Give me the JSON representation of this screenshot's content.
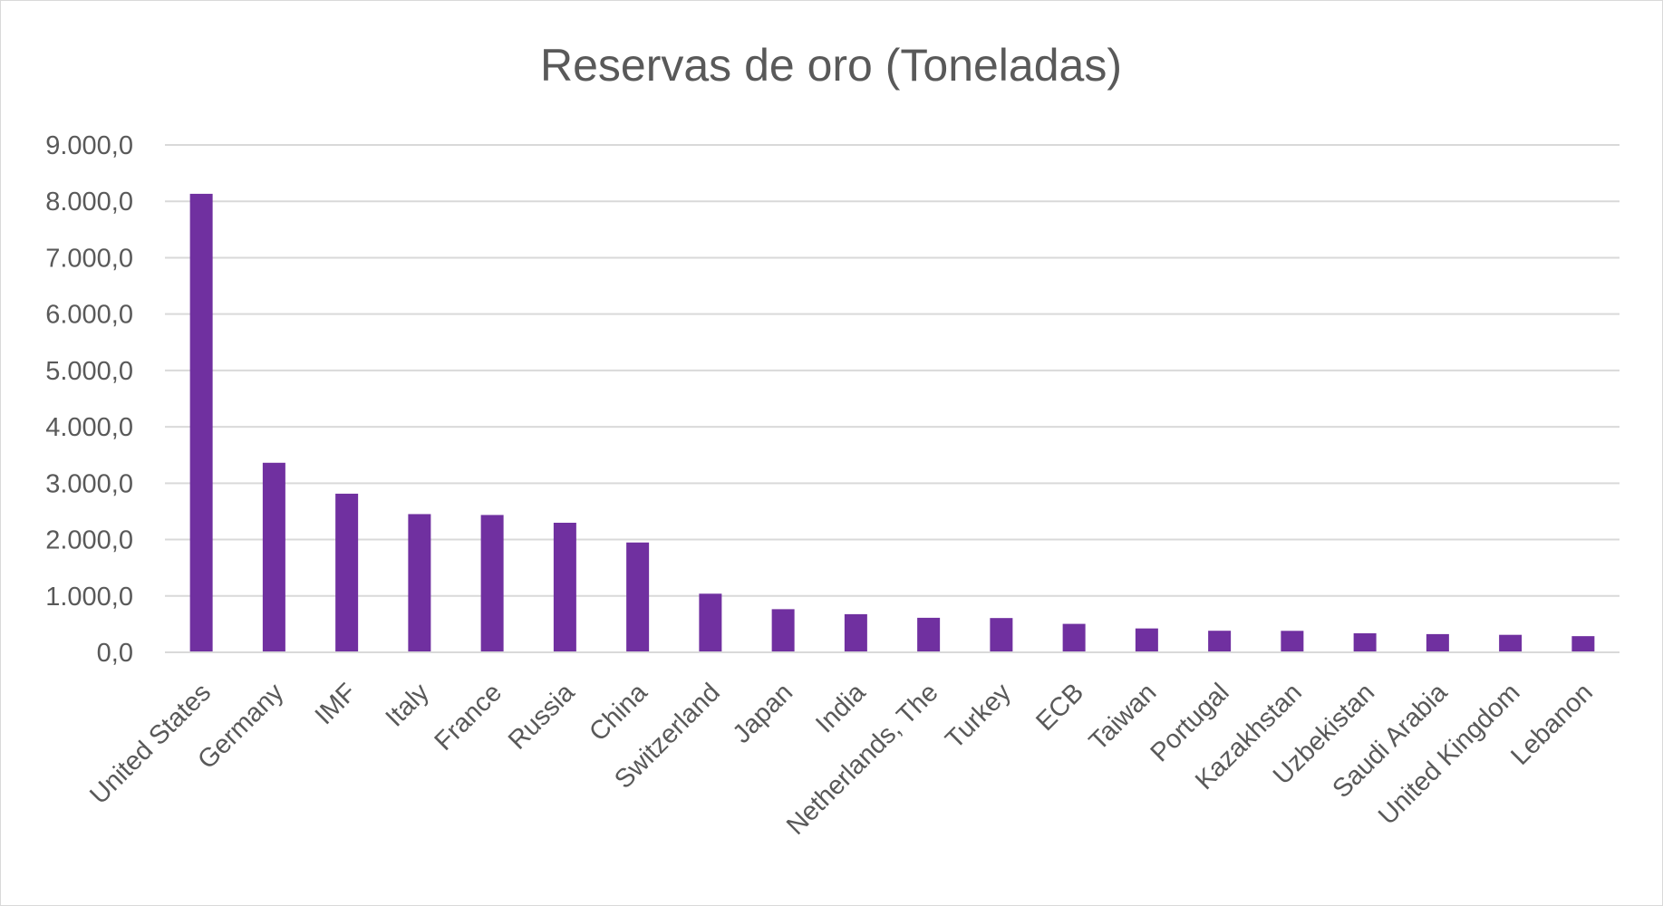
{
  "chart_data": {
    "type": "bar",
    "title": "Reservas de oro (Toneladas)",
    "xlabel": "",
    "ylabel": "",
    "ylim": [
      0,
      9000
    ],
    "y_ticks": [
      0,
      1000,
      2000,
      3000,
      4000,
      5000,
      6000,
      7000,
      8000,
      9000
    ],
    "y_tick_labels": [
      "0,0",
      "1.000,0",
      "2.000,0",
      "3.000,0",
      "4.000,0",
      "5.000,0",
      "6.000,0",
      "7.000,0",
      "8.000,0",
      "9.000,0"
    ],
    "grid": true,
    "legend": "none",
    "bar_color": "#7030a0",
    "categories": [
      "United States",
      "Germany",
      "IMF",
      "Italy",
      "France",
      "Russia",
      "China",
      "Switzerland",
      "Japan",
      "India",
      "Netherlands, The",
      "Turkey",
      "ECB",
      "Taiwan",
      "Portugal",
      "Kazakhstan",
      "Uzbekistan",
      "Saudi Arabia",
      "United Kingdom",
      "Lebanon"
    ],
    "values": [
      8133.5,
      3362.4,
      2814.0,
      2451.8,
      2436.2,
      2298.5,
      1948.3,
      1040.0,
      765.2,
      676.6,
      612.5,
      608.0,
      504.8,
      423.6,
      382.6,
      381.0,
      337.4,
      323.1,
      310.3,
      286.8
    ]
  }
}
